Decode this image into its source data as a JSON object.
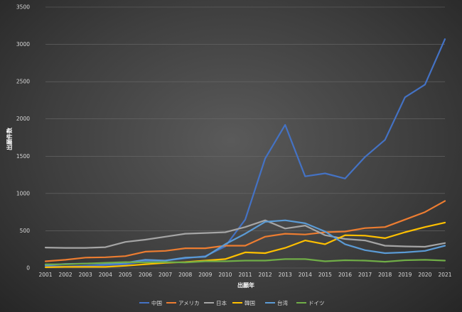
{
  "chart_data": {
    "type": "line",
    "xlabel": "出願年",
    "ylabel": "出願件数",
    "ylim": [
      0,
      3500
    ],
    "yticks": [
      0,
      500,
      1000,
      1500,
      2000,
      2500,
      3000,
      3500
    ],
    "x": [
      "2001",
      "2002",
      "2003",
      "2004",
      "2005",
      "2006",
      "2007",
      "2008",
      "2009",
      "2010",
      "2011",
      "2012",
      "2013",
      "2014",
      "2015",
      "2016",
      "2017",
      "2018",
      "2019",
      "2020",
      "2021"
    ],
    "grid": true,
    "legend_position": "bottom",
    "series": [
      {
        "name": "中国",
        "color": "#4472c4",
        "values": [
          30,
          20,
          30,
          40,
          50,
          90,
          100,
          130,
          160,
          290,
          650,
          1470,
          1920,
          1230,
          1270,
          1200,
          1490,
          1720,
          2290,
          2460,
          3070
        ]
      },
      {
        "name": "アメリカ",
        "color": "#ed7d31",
        "values": [
          90,
          110,
          140,
          145,
          160,
          220,
          230,
          265,
          265,
          300,
          300,
          420,
          460,
          450,
          480,
          490,
          535,
          550,
          650,
          750,
          900
        ]
      },
      {
        "name": "日本",
        "color": "#a5a5a5",
        "values": [
          275,
          270,
          270,
          280,
          350,
          380,
          420,
          460,
          470,
          480,
          550,
          640,
          530,
          570,
          440,
          390,
          370,
          300,
          290,
          285,
          335
        ]
      },
      {
        "name": "韓国",
        "color": "#ffc000",
        "values": [
          10,
          15,
          15,
          15,
          30,
          50,
          70,
          80,
          100,
          120,
          210,
          200,
          270,
          370,
          320,
          440,
          435,
          400,
          480,
          550,
          610
        ]
      },
      {
        "name": "台湾",
        "color": "#5b9bd5",
        "values": [
          40,
          55,
          60,
          60,
          70,
          110,
          100,
          140,
          150,
          320,
          460,
          620,
          640,
          600,
          490,
          320,
          240,
          200,
          210,
          230,
          300
        ]
      },
      {
        "name": "ドイツ",
        "color": "#70ad47",
        "values": [
          50,
          50,
          60,
          70,
          80,
          75,
          80,
          75,
          90,
          90,
          100,
          100,
          120,
          120,
          90,
          105,
          100,
          85,
          105,
          110,
          100
        ]
      }
    ]
  }
}
